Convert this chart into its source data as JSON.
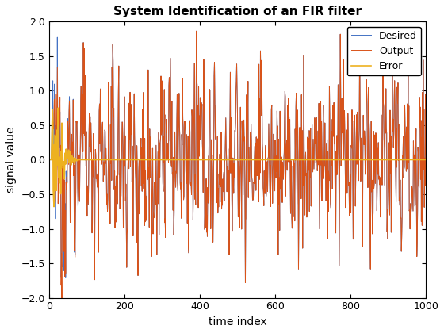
{
  "title": "System Identification of an FIR filter",
  "xlabel": "time index",
  "ylabel": "signal value",
  "n_samples": 1001,
  "ylim": [
    -2,
    2
  ],
  "xlim": [
    0,
    1000
  ],
  "xticks": [
    0,
    200,
    400,
    600,
    800,
    1000
  ],
  "yticks": [
    -2,
    -1.5,
    -1,
    -0.5,
    0,
    0.5,
    1,
    1.5,
    2
  ],
  "desired_color": "#4472C4",
  "output_color": "#D95319",
  "error_color": "#EDB120",
  "desired_label": "Desired",
  "output_label": "Output",
  "error_label": "Error",
  "linewidth_desired": 0.7,
  "linewidth_output": 0.7,
  "linewidth_error": 1.2,
  "legend_loc": "upper right",
  "random_seed": 12345,
  "figsize": [
    5.6,
    4.2
  ],
  "dpi": 100,
  "title_fontsize": 11,
  "label_fontsize": 10,
  "tick_fontsize": 9,
  "legend_fontsize": 9
}
